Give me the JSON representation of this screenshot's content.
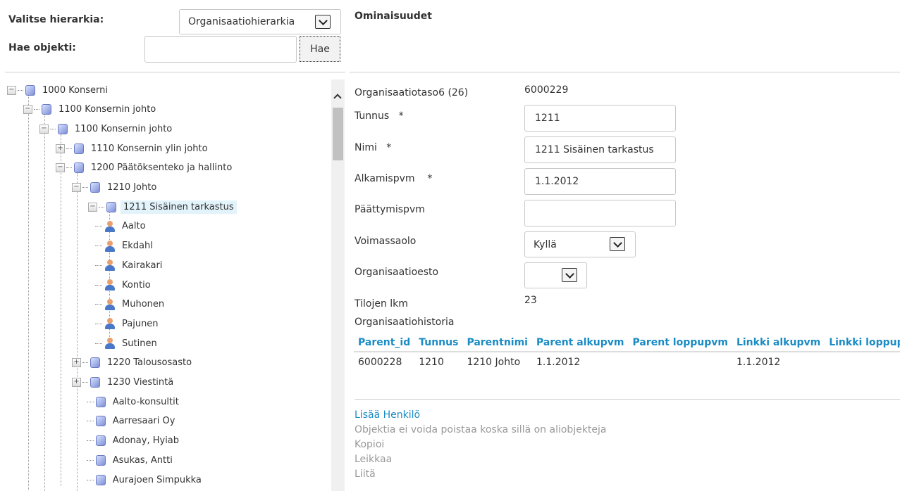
{
  "header": {
    "hierarchy_label": "Valitse hierarkia:",
    "hierarchy_value": "Organisaatiohierarkia",
    "search_label": "Hae objekti:",
    "search_value": "",
    "search_button": "Hae"
  },
  "tree": [
    {
      "level": 0,
      "exp": "-",
      "icon": "cube",
      "label": "1000 Konserni"
    },
    {
      "level": 1,
      "exp": "-",
      "icon": "cube",
      "label": "1100 Konsernin johto"
    },
    {
      "level": 2,
      "exp": "-",
      "icon": "cube",
      "label": "1100 Konsernin johto"
    },
    {
      "level": 3,
      "exp": "+",
      "icon": "cube",
      "label": "1110 Konsernin ylin johto"
    },
    {
      "level": 3,
      "exp": "-",
      "icon": "cube",
      "label": "1200 Päätöksenteko ja hallinto"
    },
    {
      "level": 4,
      "exp": "-",
      "icon": "cube",
      "label": "1210 Johto"
    },
    {
      "level": 5,
      "exp": "-",
      "icon": "cube",
      "label": "1211 Sisäinen tarkastus",
      "selected": true
    },
    {
      "level": 6,
      "exp": "",
      "icon": "person",
      "label": "Aalto"
    },
    {
      "level": 6,
      "exp": "",
      "icon": "person",
      "label": "Ekdahl"
    },
    {
      "level": 6,
      "exp": "",
      "icon": "person",
      "label": "Kairakari"
    },
    {
      "level": 6,
      "exp": "",
      "icon": "person",
      "label": "Kontio"
    },
    {
      "level": 6,
      "exp": "",
      "icon": "person",
      "label": "Muhonen"
    },
    {
      "level": 6,
      "exp": "",
      "icon": "person",
      "label": "Pajunen"
    },
    {
      "level": 6,
      "exp": "",
      "icon": "person",
      "label": "Sutinen"
    },
    {
      "level": 4,
      "exp": "+",
      "icon": "cube",
      "label": "1220 Talousosasto"
    },
    {
      "level": 4,
      "exp": "+",
      "icon": "cube",
      "label": "1230 Viestintä"
    },
    {
      "level": 4.9,
      "exp": "",
      "icon": "cube",
      "label": "Aalto-konsultit"
    },
    {
      "level": 4.9,
      "exp": "",
      "icon": "cube",
      "label": "Aarresaari Oy"
    },
    {
      "level": 4.9,
      "exp": "",
      "icon": "cube",
      "label": "Adonay, Hyiab"
    },
    {
      "level": 4.9,
      "exp": "",
      "icon": "cube",
      "label": "Asukas, Antti"
    },
    {
      "level": 4.9,
      "exp": "",
      "icon": "cube",
      "label": "Aurajoen Simpukka"
    }
  ],
  "properties": {
    "title": "Ominaisuudet",
    "org_level_label": "Organisaatiotaso6 (26)",
    "org_level_value": "6000229",
    "tunnus_label": "Tunnus",
    "tunnus_value": "1211",
    "nimi_label": "Nimi",
    "nimi_value": "1211 Sisäinen tarkastus",
    "alku_label": "Alkamispvm",
    "alku_value": "1.1.2012",
    "loppu_label": "Päättymispvm",
    "loppu_value": "",
    "voimassa_label": "Voimassaolo",
    "voimassa_value": "Kyllä",
    "esto_label": "Organisaatioesto",
    "esto_value": "",
    "tilat_label": "Tilojen lkm",
    "tilat_value": "23",
    "required_mark": "*",
    "history_label": "Organisaatiohistoria",
    "history_columns": [
      "Parent_id",
      "Tunnus",
      "Parentnimi",
      "Parent alkupvm",
      "Parent loppupvm",
      "Linkki alkupvm",
      "Linkki loppupvm"
    ],
    "history_rows": [
      [
        "6000228",
        "1210",
        "1210 Johto",
        "1.1.2012",
        "",
        "1.1.2012",
        ""
      ]
    ]
  },
  "actions": {
    "add_person": "Lisää Henkilö",
    "cannot_delete": "Objektia ei voida poistaa koska sillä on aliobjekteja",
    "copy": "Kopioi",
    "cut": "Leikkaa",
    "paste": "Liitä"
  },
  "colors": {
    "link": "#1a8bc4",
    "selected_bg": "#e3f3fb"
  }
}
